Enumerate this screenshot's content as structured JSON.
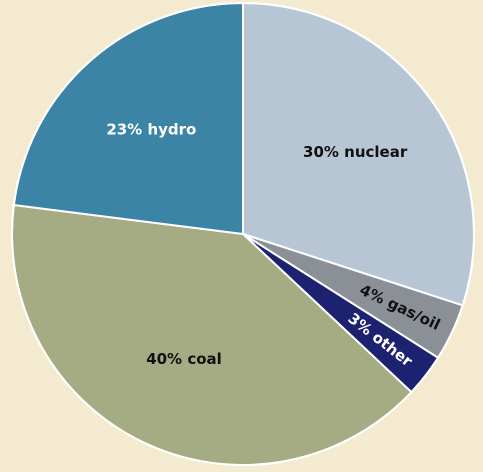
{
  "chart_data": {
    "type": "pie",
    "values": [
      30,
      4,
      3,
      40,
      23
    ],
    "value_labels": [
      "30% nuclear",
      "4% gas/oil",
      "3% other",
      "40% coal",
      "23% hydro"
    ],
    "colors": [
      "#b7c6d5",
      "#8b9096",
      "#1d2270",
      "#a5ab82",
      "#3c84a6"
    ],
    "start_angle": 0,
    "direction": "clockwise"
  }
}
